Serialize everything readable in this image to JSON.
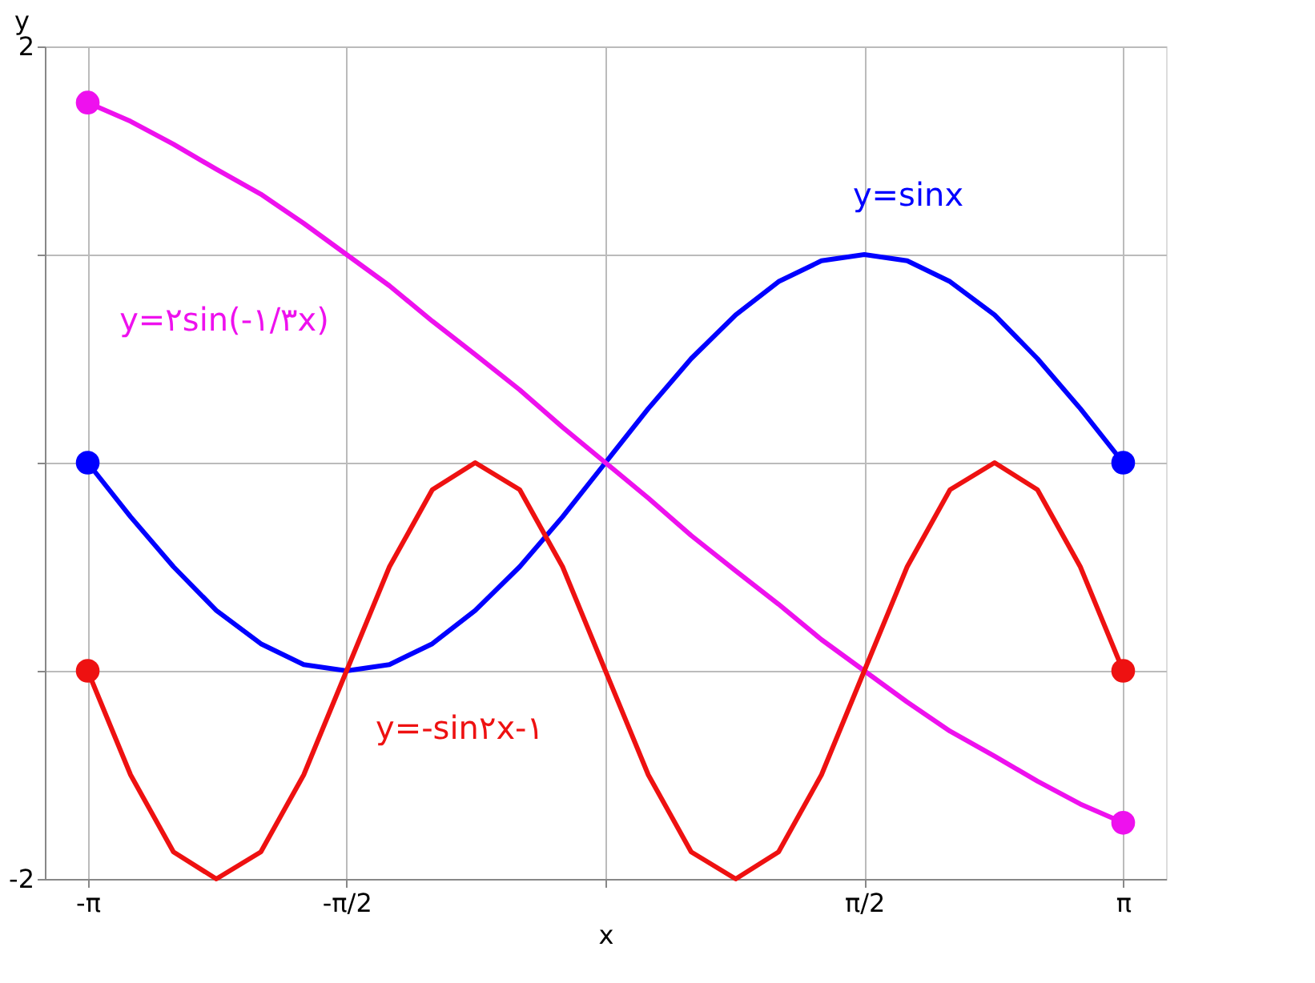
{
  "chart_data": {
    "type": "line",
    "xlabel": "x",
    "ylabel": "y",
    "xlim": [
      -3.4,
      3.4
    ],
    "ylim": [
      -2,
      2
    ],
    "xticks": [
      {
        "value": -3.14,
        "label": "-π"
      },
      {
        "value": -1.57,
        "label": "-π/2"
      },
      {
        "value": 0,
        "label": null
      },
      {
        "value": 1.57,
        "label": "π/2"
      },
      {
        "value": 3.14,
        "label": "π"
      }
    ],
    "yticks": [
      -2,
      {
        "value": -1,
        "label": null
      },
      {
        "value": 0,
        "label": null
      },
      {
        "value": 1,
        "label": null
      },
      2
    ],
    "grid": true,
    "line_style": "solid",
    "marker": "none",
    "x": [
      -3.14,
      -2.88,
      -2.62,
      -2.36,
      -2.09,
      -1.83,
      -1.57,
      -1.31,
      -1.05,
      -0.79,
      -0.52,
      -0.26,
      0,
      0.26,
      0.52,
      0.79,
      1.05,
      1.31,
      1.57,
      1.83,
      2.09,
      2.36,
      2.62,
      2.88,
      3.14
    ],
    "series": [
      {
        "color": "#0000ff",
        "values": [
          0,
          -0.26,
          -0.5,
          -0.71,
          -0.87,
          -0.97,
          -1,
          -0.97,
          -0.87,
          -0.71,
          -0.5,
          -0.26,
          0,
          0.26,
          0.5,
          0.71,
          0.87,
          0.97,
          1,
          0.97,
          0.87,
          0.71,
          0.5,
          0.26,
          0
        ]
      },
      {
        "color": "#ee11ee",
        "values": [
          1.73,
          1.64,
          1.53,
          1.41,
          1.29,
          1.15,
          1.0,
          0.85,
          0.68,
          0.52,
          0.35,
          0.17,
          0,
          -0.17,
          -0.35,
          -0.52,
          -0.68,
          -0.85,
          -1.0,
          -1.15,
          -1.29,
          -1.41,
          -1.53,
          -1.64,
          -1.73
        ]
      },
      {
        "color": "#ee1111",
        "values": [
          -1,
          -1.5,
          -1.87,
          -2,
          -1.87,
          -1.5,
          -1,
          -0.5,
          -0.13,
          0,
          -0.13,
          -0.5,
          -1,
          -1.5,
          -1.87,
          -2,
          -1.87,
          -1.5,
          -1,
          -0.5,
          -0.13,
          0,
          -0.13,
          -0.5,
          -1
        ]
      },
      {
        "type": "scatter",
        "marker": "circle",
        "color": "#0000ff",
        "values": [
          0,
          null,
          null,
          null,
          null,
          null,
          null,
          null,
          null,
          null,
          null,
          null,
          null,
          null,
          null,
          null,
          null,
          null,
          null,
          null,
          null,
          null,
          null,
          null,
          0
        ]
      },
      {
        "type": "scatter",
        "marker": "circle",
        "color": "#ee11ee",
        "values": [
          1.73,
          null,
          null,
          null,
          null,
          null,
          null,
          null,
          null,
          null,
          null,
          null,
          null,
          null,
          null,
          null,
          null,
          null,
          null,
          null,
          null,
          null,
          null,
          null,
          -1.73
        ]
      },
      {
        "type": "scatter",
        "marker": "circle",
        "color": "#ee1111",
        "values": [
          -1,
          null,
          null,
          null,
          null,
          null,
          null,
          null,
          null,
          null,
          null,
          null,
          null,
          null,
          null,
          null,
          null,
          null,
          null,
          null,
          null,
          null,
          null,
          null,
          -1
        ]
      }
    ],
    "annotations": [
      "y=sinx",
      "y=۲sin(-۱/۳x)",
      "y=-sin۲x-۱"
    ]
  }
}
